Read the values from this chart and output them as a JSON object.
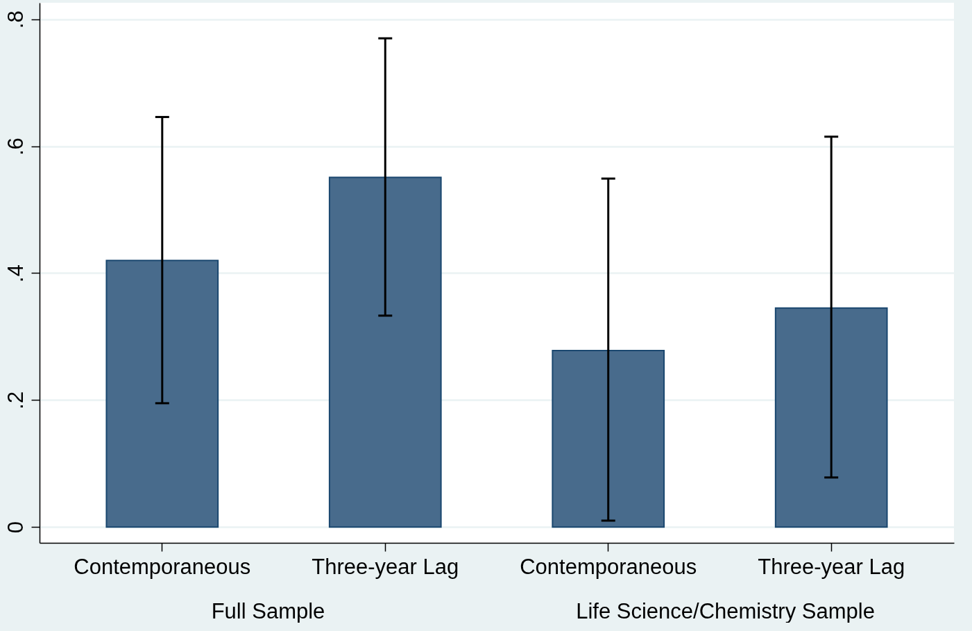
{
  "chart_data": {
    "type": "bar",
    "categories": [
      "Contemporaneous",
      "Three-year Lag",
      "Contemporaneous",
      "Three-year Lag"
    ],
    "values": [
      0.42,
      0.551,
      0.278,
      0.345
    ],
    "errors": [
      [
        0.195,
        0.646
      ],
      [
        0.333,
        0.77
      ],
      [
        0.01,
        0.549
      ],
      [
        0.078,
        0.615
      ]
    ],
    "color": "#486b8c",
    "ylim": [
      -0.025,
      0.826
    ],
    "yticks": [
      0,
      {
        "value": 0.2,
        "label": ".2"
      },
      {
        "value": 0.4,
        "label": ".4"
      },
      {
        "value": 0.6,
        "label": ".6"
      },
      {
        "value": 0.8,
        "label": ".8"
      }
    ],
    "grid": "y",
    "annotations": [
      "Full Sample",
      "Life Science/Chemistry Sample"
    ]
  }
}
